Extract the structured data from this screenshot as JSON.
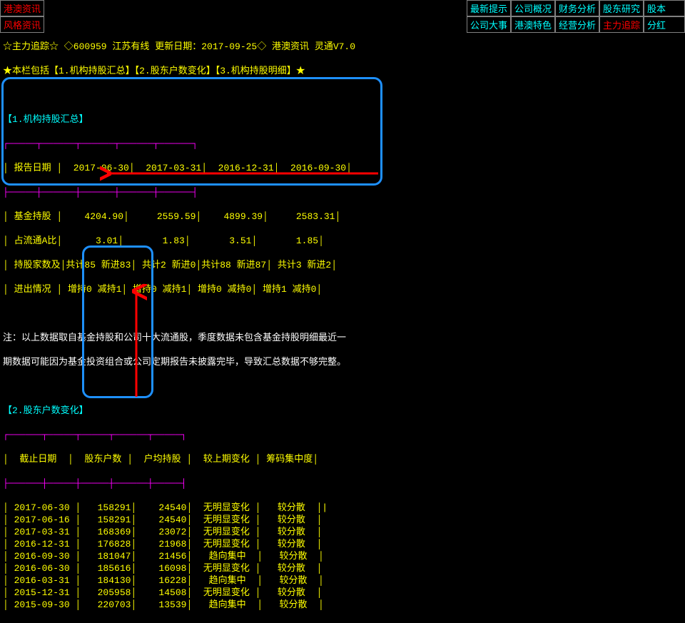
{
  "colors": {
    "bg": "#000000",
    "yellow": "#ffff00",
    "cyan": "#00ffff",
    "magenta": "#ff00ff",
    "red": "#ff0000",
    "white": "#ffffff",
    "gray": "#808080",
    "blue": "#1e90ff"
  },
  "left_tabs": [
    "港澳资讯",
    "风格资讯"
  ],
  "nav": {
    "row1": [
      {
        "label": "最新提示",
        "red": false
      },
      {
        "label": "公司概况",
        "red": false
      },
      {
        "label": "财务分析",
        "red": false
      },
      {
        "label": "股东研究",
        "red": false
      },
      {
        "label": "股本",
        "red": false
      }
    ],
    "row2": [
      {
        "label": "公司大事",
        "red": false
      },
      {
        "label": "港澳特色",
        "red": false
      },
      {
        "label": "经营分析",
        "red": false
      },
      {
        "label": "主力追踪",
        "red": true
      },
      {
        "label": "分红",
        "red": false
      }
    ]
  },
  "header1": "☆主力追踪☆ ◇600959 江苏有线 更新日期：2017-09-25◇ 港澳资讯 灵通V7.0",
  "header2": "★本栏包括【1.机构持股汇总】【2.股东户数变化】【3.机构持股明细】★",
  "section1_title": "【1.机构持股汇总】",
  "table1": {
    "hdiv": "┌─────┬──────┬──────┬──────┬──────┐",
    "header": "│ 报告日期 │  2017-06-30│  2017-03-31│  2016-12-31│  2016-09-30│",
    "mdiv": "├─────┼──────┼──────┼──────┼──────┤",
    "r1": "│ 基金持股 │    4204.90│     2559.59│    4899.39│     2583.31│",
    "r2": "│ 占流通A比│      3.01│       1.83│       3.51│       1.85│",
    "r3": "│ 持股家数及│共计85 新进83│ 共计2 新进0│共计88 新进87│ 共计3 新进2│",
    "r4": "│ 进出情况 │ 增持0 减持1│ 增持0 减持1│ 增持0 减持0│ 增持1 减持0│"
  },
  "note1": "注：以上数据取自基金持股和公司十大流通股，季度数据未包含基金持股明细最近一",
  "note2": "期数据可能因为基金投资组合或公司定期报告未披露完毕，导致汇总数据不够完整。",
  "section2_title": "【2.股东户数变化】",
  "table2": {
    "hdiv": "┌──────┬─────┬─────┬──────┬─────┐",
    "header": "│  截止日期  │  股东户数 │  户均持股 │  较上期变化 │ 筹码集中度│",
    "mdiv": "├──────┼─────┼─────┼──────┼─────┤",
    "rows": [
      "│ 2017-06-30 │   158291│    24540│  无明显变化 │   较分散  │|",
      "│ 2017-06-16 │   158291│    24540│  无明显变化 │   较分散  │",
      "│ 2017-03-31 │   168369│    23072│  无明显变化 │   较分散  │",
      "│ 2016-12-31 │   176828│    21968│  无明显变化 │   较分散  │",
      "│ 2016-09-30 │   181047│    21456│   趋向集中  │   较分散  │",
      "│ 2016-06-30 │   185616│    16098│  无明显变化 │   较分散  │",
      "│ 2016-03-31 │   184130│    16228│   趋向集中  │   较分散  │",
      "│ 2015-12-31 │   205958│    14508│  无明显变化 │   较分散  │",
      "│ 2015-09-30 │   220703│    13539│   趋向集中  │   较分散  │"
    ]
  }
}
